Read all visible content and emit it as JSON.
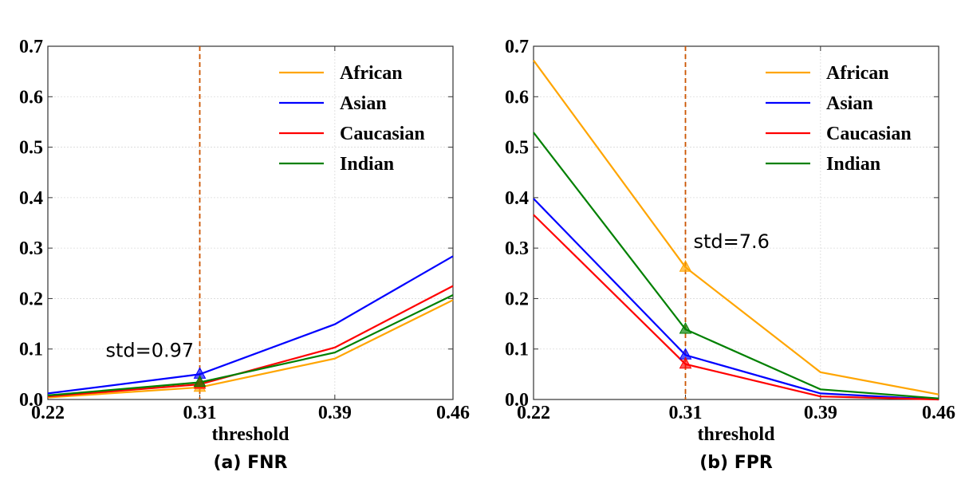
{
  "chart_data": [
    {
      "type": "line",
      "caption": "(a) FNR",
      "xlabel": "threshold",
      "ylabel": "",
      "x": [
        0.22,
        0.31,
        0.39,
        0.46
      ],
      "xticks": [
        "0.22",
        "0.31",
        "0.39",
        "0.46"
      ],
      "ylim": [
        0,
        0.7
      ],
      "yticks": [
        "0.0",
        "0.1",
        "0.2",
        "0.3",
        "0.4",
        "0.5",
        "0.6",
        "0.7"
      ],
      "grid": true,
      "legend_position": "top-right",
      "series": [
        {
          "name": "African",
          "color": "#ffa500",
          "values": [
            0.004,
            0.024,
            0.081,
            0.197
          ]
        },
        {
          "name": "Asian",
          "color": "#0000ff",
          "values": [
            0.012,
            0.05,
            0.149,
            0.284
          ]
        },
        {
          "name": "Caucasian",
          "color": "#ff0000",
          "values": [
            0.006,
            0.03,
            0.103,
            0.225
          ]
        },
        {
          "name": "Indian",
          "color": "#008000",
          "values": [
            0.008,
            0.034,
            0.093,
            0.207
          ]
        }
      ],
      "vline": {
        "x": 0.31,
        "color": "#cc5500"
      },
      "annotation": {
        "text": "std=0.97",
        "x": 0.31
      },
      "markers_x": 0.31
    },
    {
      "type": "line",
      "caption": "(b) FPR",
      "xlabel": "threshold",
      "ylabel": "",
      "x": [
        0.22,
        0.31,
        0.39,
        0.46
      ],
      "xticks": [
        "0.22",
        "0.31",
        "0.39",
        "0.46"
      ],
      "ylim": [
        0,
        0.7
      ],
      "yticks": [
        "0.0",
        "0.1",
        "0.2",
        "0.3",
        "0.4",
        "0.5",
        "0.6",
        "0.7"
      ],
      "grid": true,
      "legend_position": "top-right",
      "series": [
        {
          "name": "African",
          "color": "#ffa500",
          "values": [
            0.672,
            0.262,
            0.054,
            0.01
          ]
        },
        {
          "name": "Asian",
          "color": "#0000ff",
          "values": [
            0.398,
            0.088,
            0.012,
            0.0
          ]
        },
        {
          "name": "Caucasian",
          "color": "#ff0000",
          "values": [
            0.366,
            0.07,
            0.006,
            0.0
          ]
        },
        {
          "name": "Indian",
          "color": "#008000",
          "values": [
            0.529,
            0.139,
            0.02,
            0.002
          ]
        }
      ],
      "vline": {
        "x": 0.31,
        "color": "#cc5500"
      },
      "annotation": {
        "text": "std=7.6",
        "x": 0.31
      },
      "markers_x": 0.31
    }
  ]
}
